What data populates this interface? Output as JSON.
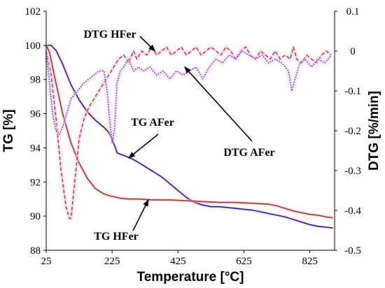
{
  "chart_data": {
    "type": "line",
    "xlabel": "Temperature [°C]",
    "ylabel_left": "TG [%]",
    "ylabel_right": "DTG [%/min]",
    "xlim": [
      25,
      900
    ],
    "xticks": [
      25,
      225,
      425,
      625,
      825
    ],
    "ylim_left": [
      88,
      102
    ],
    "yticks_left": [
      88,
      90,
      92,
      94,
      96,
      98,
      100,
      102
    ],
    "ylim_right": [
      -0.5,
      0.1
    ],
    "yticks_right": [
      -0.5,
      -0.4,
      -0.3,
      -0.2,
      -0.1,
      0,
      0.1
    ],
    "grid": false,
    "colors": {
      "tg_afer": "#1f1f8f",
      "tg_hfer": "#a0381c",
      "dtg_afer": "#3a3aa8",
      "dtg_hfer": "#b8321c",
      "glow": "#f6c9ef"
    },
    "series": [
      {
        "name": "TG AFer",
        "axis": "left",
        "style": "solid",
        "x": [
          25,
          40,
          55,
          75,
          100,
          125,
          150,
          175,
          200,
          215,
          225,
          235,
          240,
          260,
          280,
          300,
          325,
          350,
          375,
          400,
          425,
          450,
          475,
          500,
          525,
          550,
          575,
          600,
          625,
          650,
          675,
          700,
          725,
          750,
          775,
          800,
          825,
          850,
          875,
          895
        ],
        "y": [
          100,
          100,
          99.7,
          98.9,
          97.7,
          96.8,
          96.1,
          95.6,
          95.2,
          94.9,
          94.5,
          94.0,
          93.7,
          93.55,
          93.4,
          93.2,
          92.9,
          92.6,
          92.3,
          91.9,
          91.5,
          91.1,
          90.8,
          90.65,
          90.55,
          90.55,
          90.5,
          90.45,
          90.4,
          90.35,
          90.25,
          90.15,
          90.05,
          89.95,
          89.8,
          89.65,
          89.5,
          89.4,
          89.35,
          89.3
        ]
      },
      {
        "name": "TG HFer",
        "axis": "left",
        "style": "solid",
        "x": [
          25,
          35,
          50,
          75,
          100,
          125,
          150,
          175,
          200,
          225,
          250,
          275,
          300,
          350,
          400,
          450,
          500,
          550,
          600,
          650,
          700,
          725,
          750,
          775,
          800,
          825,
          850,
          875,
          895
        ],
        "y": [
          100,
          99.6,
          98.2,
          96.0,
          94.3,
          93.1,
          92.2,
          91.6,
          91.3,
          91.15,
          91.05,
          91.0,
          91.0,
          90.95,
          90.95,
          90.9,
          90.85,
          90.8,
          90.8,
          90.75,
          90.7,
          90.6,
          90.45,
          90.3,
          90.2,
          90.1,
          90.05,
          89.95,
          89.9
        ]
      },
      {
        "name": "DTG HFer",
        "axis": "right",
        "style": "dashed",
        "x": [
          25,
          40,
          55,
          70,
          85,
          95,
          100,
          105,
          115,
          125,
          140,
          155,
          170,
          185,
          200,
          215,
          230,
          245,
          260,
          275,
          290,
          300,
          315,
          330,
          345,
          360,
          375,
          390,
          405,
          420,
          435,
          450,
          465,
          480,
          495,
          510,
          525,
          540,
          555,
          570,
          585,
          600,
          615,
          630,
          645,
          660,
          675,
          690,
          705,
          720,
          735,
          750,
          765,
          775,
          785,
          800,
          815,
          830,
          845,
          860,
          875,
          890
        ],
        "y": [
          0.0,
          -0.06,
          -0.17,
          -0.3,
          -0.39,
          -0.42,
          -0.42,
          -0.38,
          -0.3,
          -0.22,
          -0.17,
          -0.14,
          -0.12,
          -0.1,
          -0.08,
          -0.06,
          -0.04,
          -0.02,
          -0.01,
          -0.03,
          0.0,
          -0.02,
          0.0,
          -0.01,
          0.01,
          -0.01,
          0.0,
          0.01,
          -0.01,
          0.0,
          0.01,
          -0.01,
          0.0,
          0.01,
          -0.01,
          0.0,
          0.01,
          0.0,
          -0.01,
          0.01,
          0.0,
          -0.02,
          0.0,
          0.01,
          -0.01,
          -0.02,
          0.0,
          -0.01,
          -0.02,
          0.0,
          -0.02,
          -0.01,
          -0.02,
          0.01,
          -0.02,
          -0.03,
          -0.01,
          -0.02,
          -0.03,
          -0.01,
          0.0,
          -0.01
        ]
      },
      {
        "name": "DTG AFer",
        "axis": "right",
        "style": "dotted",
        "x": [
          25,
          35,
          45,
          55,
          65,
          75,
          90,
          100,
          110,
          120,
          130,
          140,
          155,
          170,
          185,
          200,
          210,
          215,
          225,
          232,
          240,
          250,
          260,
          275,
          290,
          305,
          320,
          340,
          360,
          380,
          400,
          420,
          440,
          460,
          480,
          500,
          520,
          540,
          560,
          580,
          600,
          620,
          640,
          660,
          680,
          700,
          720,
          740,
          760,
          770,
          780,
          795,
          810,
          830,
          850,
          870,
          890
        ],
        "y": [
          0.0,
          -0.08,
          -0.16,
          -0.2,
          -0.21,
          -0.19,
          -0.15,
          -0.12,
          -0.11,
          -0.1,
          -0.09,
          -0.08,
          -0.07,
          -0.06,
          -0.05,
          -0.05,
          -0.1,
          -0.15,
          -0.23,
          -0.2,
          -0.08,
          -0.05,
          -0.04,
          -0.02,
          -0.05,
          -0.04,
          -0.05,
          -0.04,
          -0.06,
          -0.05,
          -0.07,
          -0.05,
          -0.06,
          -0.05,
          -0.04,
          -0.07,
          -0.04,
          -0.02,
          -0.03,
          -0.01,
          -0.02,
          0.0,
          -0.01,
          -0.02,
          -0.01,
          -0.03,
          -0.02,
          -0.03,
          -0.05,
          -0.1,
          -0.07,
          -0.03,
          -0.02,
          -0.04,
          -0.02,
          -0.03,
          -0.01
        ]
      }
    ],
    "annotations": [
      {
        "text": "DTG HFer",
        "target_x": 355,
        "target_y": 0.0,
        "target_axis": "right"
      },
      {
        "text": "TG AFer",
        "target_x": 275,
        "target_y": 93.4,
        "target_axis": "left"
      },
      {
        "text": "DTG AFer",
        "target_x": 445,
        "target_y": -0.04,
        "target_axis": "right"
      },
      {
        "text": "TG HFer",
        "target_x": 335,
        "target_y": 90.95,
        "target_axis": "left"
      }
    ]
  }
}
